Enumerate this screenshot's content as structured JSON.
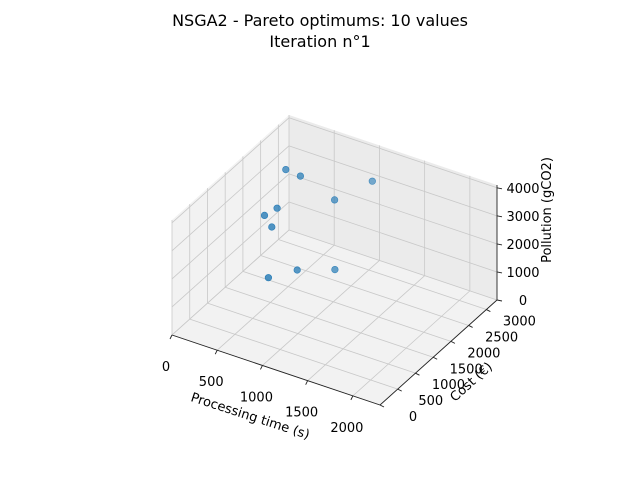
{
  "chart_data": {
    "type": "scatter",
    "title": "NSGA2 - Pareto optimums: 10 values",
    "subtitle": "Iteration n°1",
    "xlabel": "Processing time (s)",
    "ylabel": "Cost (€)",
    "zlabel": "Pollution (gCO2)",
    "x_ticks": [
      0,
      500,
      1000,
      1500,
      2000
    ],
    "y_ticks": [
      0,
      500,
      1000,
      1500,
      2000,
      2500,
      3000
    ],
    "z_ticks": [
      0,
      1000,
      2000,
      3000,
      4000
    ],
    "xlim": [
      0,
      2300
    ],
    "ylim": [
      0,
      3300
    ],
    "zlim": [
      0,
      4100
    ],
    "grid": true,
    "marker_color": "#1f77b4",
    "points": [
      {
        "x": 200,
        "y": 2700,
        "z": 3050
      },
      {
        "x": 400,
        "y": 2600,
        "z": 3150
      },
      {
        "x": 1000,
        "y": 3100,
        "z": 3050
      },
      {
        "x": 300,
        "y": 2200,
        "z": 2350
      },
      {
        "x": 200,
        "y": 2100,
        "z": 2100
      },
      {
        "x": 300,
        "y": 2050,
        "z": 1850
      },
      {
        "x": 600,
        "y": 2000,
        "z": 700
      },
      {
        "x": 900,
        "y": 2300,
        "z": 700
      },
      {
        "x": 400,
        "y": 1700,
        "z": 550
      },
      {
        "x": 700,
        "y": 2800,
        "z": 2400
      }
    ]
  }
}
